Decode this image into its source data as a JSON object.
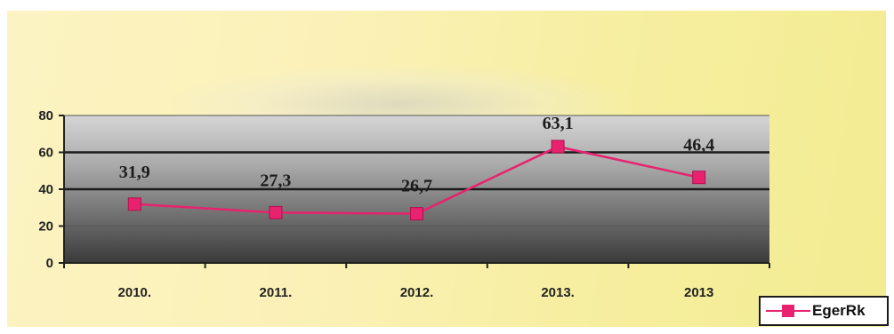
{
  "chart_data": {
    "type": "line",
    "categories": [
      "2010.",
      "2011.",
      "2012.",
      "2013.",
      "2013"
    ],
    "series": [
      {
        "name": "EgerRk",
        "values": [
          31.9,
          27.3,
          26.7,
          63.1,
          46.4
        ],
        "labels": [
          "31,9",
          "27,3",
          "26,7",
          "63,1",
          "46,4"
        ],
        "color": "#e8226e"
      }
    ],
    "y_ticks": [
      "0",
      "20",
      "40",
      "60",
      "80"
    ],
    "ylim": [
      0,
      80
    ],
    "grid": true,
    "legend_position": "bottom-right"
  }
}
